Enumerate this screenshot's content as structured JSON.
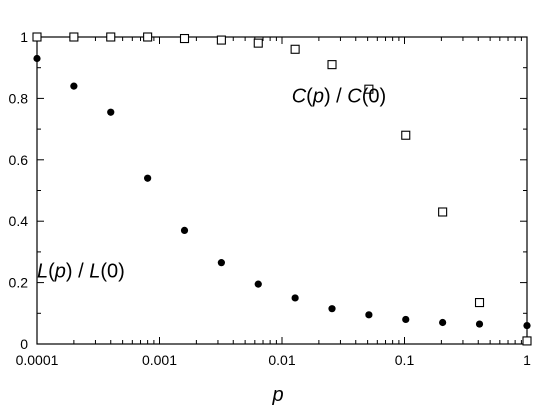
{
  "chart_data": {
    "type": "scatter",
    "title": "",
    "xlabel": "p",
    "ylabel": "",
    "x_scale": "log",
    "xlim": [
      0.0001,
      1
    ],
    "ylim": [
      0,
      1
    ],
    "grid": false,
    "x_ticks": [
      "0.0001",
      "0.001",
      "0.01",
      "0.1",
      "1"
    ],
    "y_ticks": [
      "0",
      "0.2",
      "0.4",
      "0.6",
      "0.8",
      "1"
    ],
    "series": [
      {
        "name": "C(p) / C(0)",
        "marker": "open-square",
        "color": "#000000",
        "x": [
          0.0001,
          0.0002,
          0.0004,
          0.0008,
          0.0016,
          0.0032,
          0.0064,
          0.0128,
          0.0256,
          0.0512,
          0.1024,
          0.2048,
          0.4096,
          1.0
        ],
        "y": [
          1.0,
          1.0,
          1.0,
          1.0,
          0.995,
          0.99,
          0.98,
          0.96,
          0.91,
          0.83,
          0.68,
          0.43,
          0.135,
          0.01
        ]
      },
      {
        "name": "L(p) / L(0)",
        "marker": "filled-circle",
        "color": "#000000",
        "x": [
          0.0001,
          0.0002,
          0.0004,
          0.0008,
          0.0016,
          0.0032,
          0.0064,
          0.0128,
          0.0256,
          0.0512,
          0.1024,
          0.2048,
          0.4096,
          1.0
        ],
        "y": [
          0.93,
          0.84,
          0.755,
          0.54,
          0.37,
          0.265,
          0.195,
          0.15,
          0.115,
          0.095,
          0.08,
          0.07,
          0.065,
          0.06
        ]
      }
    ],
    "annotations": [
      {
        "text": "C(p) / C(0)",
        "at_x": 0.012,
        "at_y": 0.81
      },
      {
        "text": "L(p) / L(0)",
        "at_x": 0.0001,
        "at_y": 0.24
      }
    ]
  }
}
